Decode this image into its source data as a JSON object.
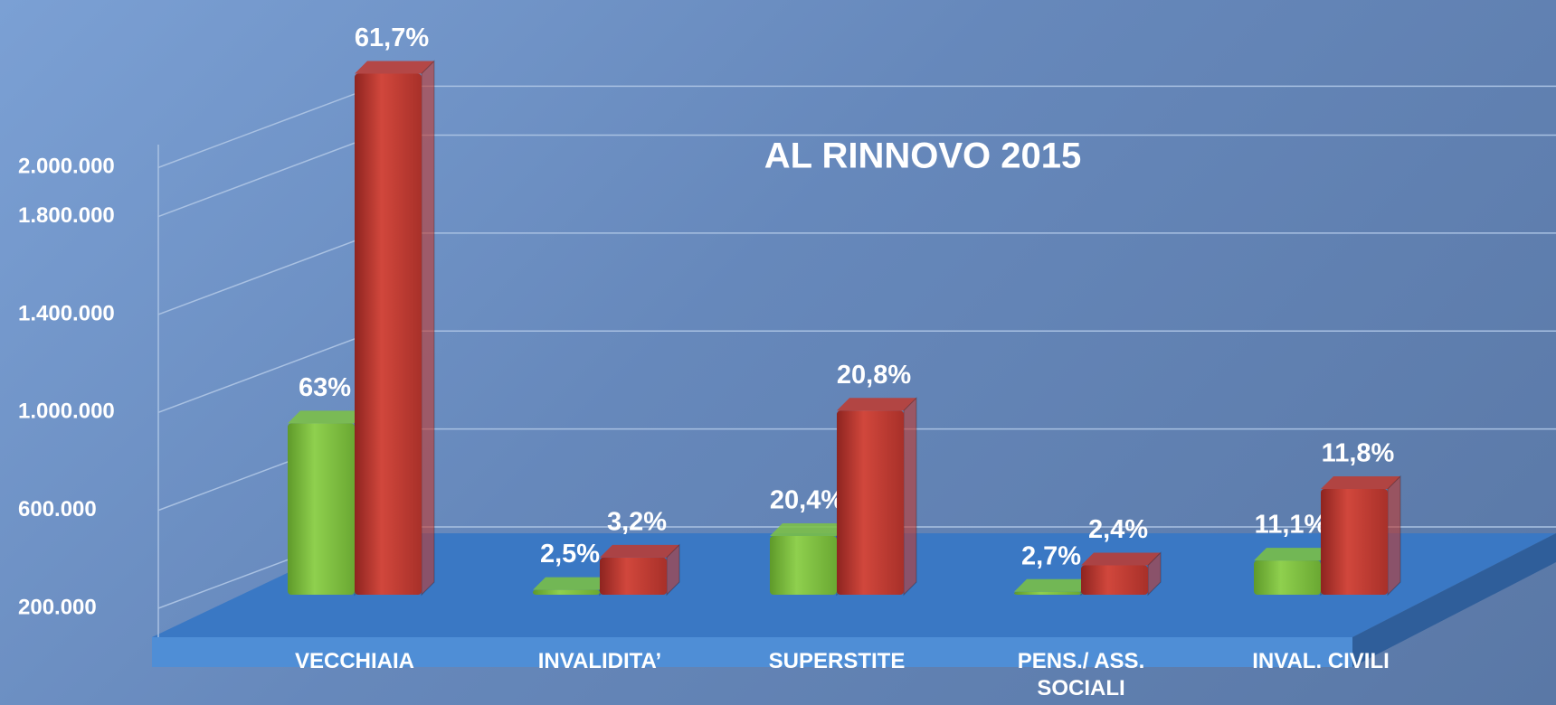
{
  "chart_data": {
    "type": "bar3d",
    "title": "AL RINNOVO 2015",
    "categories": [
      "VECCHIAIA",
      "INVALIDITA’",
      "SUPERSTITE",
      "PENS./ ASS. SOCIALI",
      "INVAL. CIVILI"
    ],
    "series": [
      {
        "color": "#7cc242",
        "values": [
          900000,
          220000,
          440000,
          212000,
          340000
        ],
        "percent_labels": [
          "63%",
          "2,5%",
          "20,4%",
          "2,7%",
          "11,1%"
        ]
      },
      {
        "color": "#c0392f",
        "values": [
          2328000,
          352000,
          952000,
          320000,
          632000
        ],
        "percent_labels": [
          "61,7%",
          "3,2%",
          "20,8%",
          "2,4%",
          "11,8%"
        ]
      }
    ],
    "ylim": [
      200000,
      2400000
    ],
    "yticks": [
      {
        "value": 2000000,
        "label": "2.000.000"
      },
      {
        "value": 1800000,
        "label": "1.800.000"
      },
      {
        "value": 1400000,
        "label": "1.400.000"
      },
      {
        "value": 1000000,
        "label": "1.000.000"
      },
      {
        "value": 600000,
        "label": "600.000"
      },
      {
        "value": 200000,
        "label": "200.000"
      }
    ],
    "grid": true
  }
}
